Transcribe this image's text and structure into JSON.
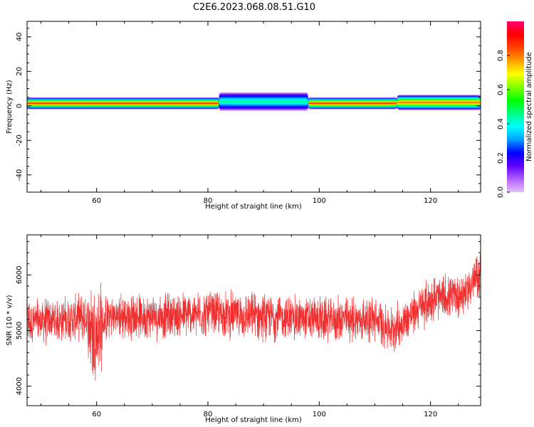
{
  "title": "C2E6.2023.068.08.51.G10",
  "colors": {
    "trace": "#f03030",
    "axis": "#000000",
    "background": "#ffffff"
  },
  "chart_data": [
    {
      "type": "heatmap",
      "xlabel": "Height of straight line (km)",
      "ylabel": "Frequency (Hz)",
      "xlim": [
        47.5,
        129
      ],
      "ylim": [
        -50,
        49
      ],
      "xticks": [
        60,
        80,
        100,
        120
      ],
      "yticks": [
        -40,
        -20,
        0,
        20,
        40
      ],
      "colorbar": {
        "label": "Normalized spectral amplitude",
        "range": [
          0,
          1
        ],
        "ticks": [
          0.0,
          0.2,
          0.4,
          0.6,
          0.8
        ],
        "colormap": [
          "#e6c0ff",
          "#b060ff",
          "#6000ff",
          "#0000ff",
          "#00a0ff",
          "#00ffff",
          "#00ff80",
          "#00ff00",
          "#80ff00",
          "#ffff00",
          "#ffa000",
          "#ff4000",
          "#ff0000",
          "#ff0070"
        ]
      },
      "band_segments": [
        {
          "x": [
            47.5,
            82
          ],
          "center_hz": 1.5,
          "half_width_hz": 3.5,
          "peak_amplitude": 0.85
        },
        {
          "x": [
            82,
            98
          ],
          "center_hz": 2.5,
          "half_width_hz": 5.5,
          "peak_amplitude": 0.45
        },
        {
          "x": [
            98,
            114
          ],
          "center_hz": 1.5,
          "half_width_hz": 3.5,
          "peak_amplitude": 0.85
        },
        {
          "x": [
            114,
            129
          ],
          "center_hz": 2.0,
          "half_width_hz": 4.5,
          "peak_amplitude": 0.8
        }
      ]
    },
    {
      "type": "line",
      "xlabel": "Height of straight line (km)",
      "ylabel": "SNR (10 * v/v)",
      "xlim": [
        47.5,
        129
      ],
      "ylim": [
        3650,
        6720
      ],
      "xticks": [
        60,
        80,
        100,
        120
      ],
      "yticks": [
        4000,
        5000,
        6000
      ],
      "series": [
        {
          "trend_x": [
            47.5,
            55,
            58,
            59.5,
            60.5,
            62,
            70,
            80,
            90,
            100,
            110,
            113,
            120,
            126,
            129
          ],
          "trend_y": [
            5150,
            5200,
            5250,
            4950,
            5000,
            5250,
            5250,
            5300,
            5250,
            5200,
            5200,
            5000,
            5550,
            5650,
            6050
          ],
          "noise_amplitude": 320,
          "min": 3650,
          "max": 6720
        }
      ]
    }
  ]
}
